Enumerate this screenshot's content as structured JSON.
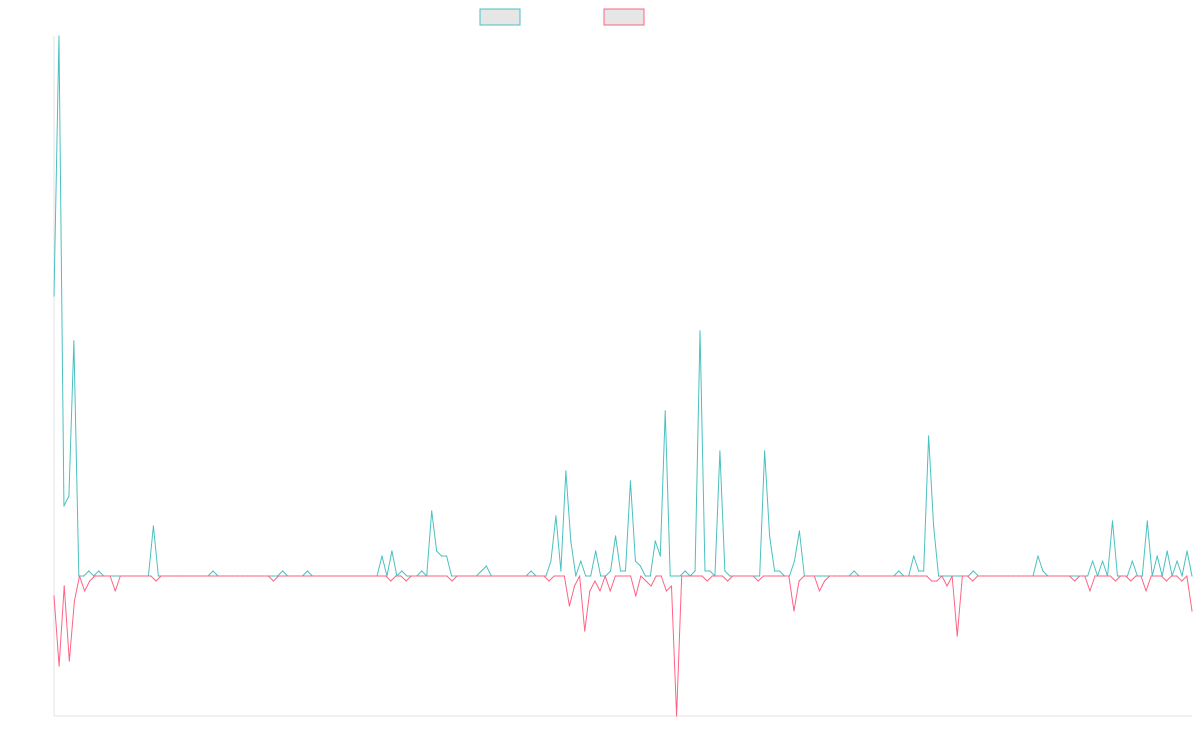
{
  "chart_data": {
    "type": "line",
    "legend_placement": "top-center",
    "grid": false,
    "x_tick_labels": false,
    "y_tick_labels": false,
    "ylim": [
      -28,
      108
    ],
    "series": [
      {
        "color": "#4bc0c0",
        "fill": "#e6e6e6",
        "values": [
          56,
          108,
          14,
          16,
          47,
          0,
          0,
          1,
          0,
          1,
          0,
          0,
          0,
          0,
          0,
          0,
          0,
          0,
          0,
          0,
          10,
          0,
          0,
          0,
          0,
          0,
          0,
          0,
          0,
          0,
          0,
          0,
          1,
          0,
          0,
          0,
          0,
          0,
          0,
          0,
          0,
          0,
          0,
          0,
          0,
          0,
          1,
          0,
          0,
          0,
          0,
          1,
          0,
          0,
          0,
          0,
          0,
          0,
          0,
          0,
          0,
          0,
          0,
          0,
          0,
          0,
          4,
          0,
          5,
          0,
          1,
          0,
          0,
          0,
          1,
          0,
          13,
          5,
          4,
          4,
          0,
          0,
          0,
          0,
          0,
          0,
          1,
          2,
          0,
          0,
          0,
          0,
          0,
          0,
          0,
          0,
          1,
          0,
          0,
          0,
          3,
          12,
          1,
          21,
          7,
          0,
          3,
          0,
          0,
          5,
          0,
          0,
          1,
          8,
          1,
          1,
          19,
          3,
          2,
          0,
          0,
          7,
          4,
          33,
          0,
          0,
          0,
          1,
          0,
          1,
          49,
          1,
          1,
          0,
          25,
          1,
          0,
          0,
          0,
          0,
          0,
          0,
          0,
          25,
          8,
          1,
          1,
          0,
          0,
          3,
          9,
          0,
          0,
          0,
          0,
          0,
          0,
          0,
          0,
          0,
          0,
          1,
          0,
          0,
          0,
          0,
          0,
          0,
          0,
          0,
          1,
          0,
          0,
          4,
          1,
          1,
          28,
          10,
          0,
          0,
          0,
          0,
          0,
          0,
          0,
          1,
          0,
          0,
          0,
          0,
          0,
          0,
          0,
          0,
          0,
          0,
          0,
          0,
          4,
          1,
          0,
          0,
          0,
          0,
          0,
          0,
          0,
          0,
          0,
          3,
          0,
          3,
          0,
          11,
          0,
          0,
          0,
          3,
          0,
          0,
          11,
          0,
          4,
          0,
          5,
          0,
          3,
          0,
          5,
          0
        ]
      },
      {
        "color": "#ff6384",
        "fill": "#e6e6e6",
        "values": [
          -4,
          -18,
          -2,
          -17,
          -5,
          0,
          -3,
          -1,
          0,
          0,
          0,
          0,
          -3,
          0,
          0,
          0,
          0,
          0,
          0,
          0,
          -1,
          0,
          0,
          0,
          0,
          0,
          0,
          0,
          0,
          0,
          0,
          0,
          0,
          0,
          0,
          0,
          0,
          0,
          0,
          0,
          0,
          0,
          0,
          -1,
          0,
          0,
          0,
          0,
          0,
          0,
          0,
          0,
          0,
          0,
          0,
          0,
          0,
          0,
          0,
          0,
          0,
          0,
          0,
          0,
          0,
          0,
          -1,
          0,
          0,
          -1,
          0,
          0,
          0,
          0,
          0,
          0,
          0,
          0,
          -1,
          0,
          0,
          0,
          0,
          0,
          0,
          0,
          0,
          0,
          0,
          0,
          0,
          0,
          0,
          0,
          0,
          0,
          0,
          -1,
          0,
          0,
          0,
          -6,
          -2,
          0,
          -11,
          -3,
          -1,
          -3,
          0,
          -3,
          0,
          0,
          0,
          0,
          -4,
          0,
          -1,
          -2,
          0,
          0,
          -3,
          -2,
          -28,
          0,
          0,
          0,
          0,
          0,
          -1,
          0,
          0,
          0,
          -1,
          0,
          0,
          0,
          0,
          0,
          -1,
          0,
          0,
          0,
          0,
          0,
          0,
          -7,
          -1,
          0,
          0,
          0,
          -3,
          -1,
          0,
          0,
          0,
          0,
          0,
          0,
          0,
          0,
          0,
          0,
          0,
          0,
          0,
          0,
          0,
          0,
          0,
          0,
          0,
          0,
          -1,
          -1,
          0,
          -2,
          0,
          -12,
          0,
          0,
          -1,
          0,
          0,
          0,
          0,
          0,
          0,
          0,
          0,
          0,
          0,
          0,
          0,
          0,
          0,
          0,
          0,
          0,
          0,
          0,
          -1,
          0,
          0,
          -3,
          0,
          0,
          0,
          0,
          -1,
          0,
          0,
          -1,
          0,
          0,
          -3,
          0,
          0,
          0,
          -1,
          0,
          0,
          -1,
          0,
          -7
        ]
      }
    ]
  }
}
